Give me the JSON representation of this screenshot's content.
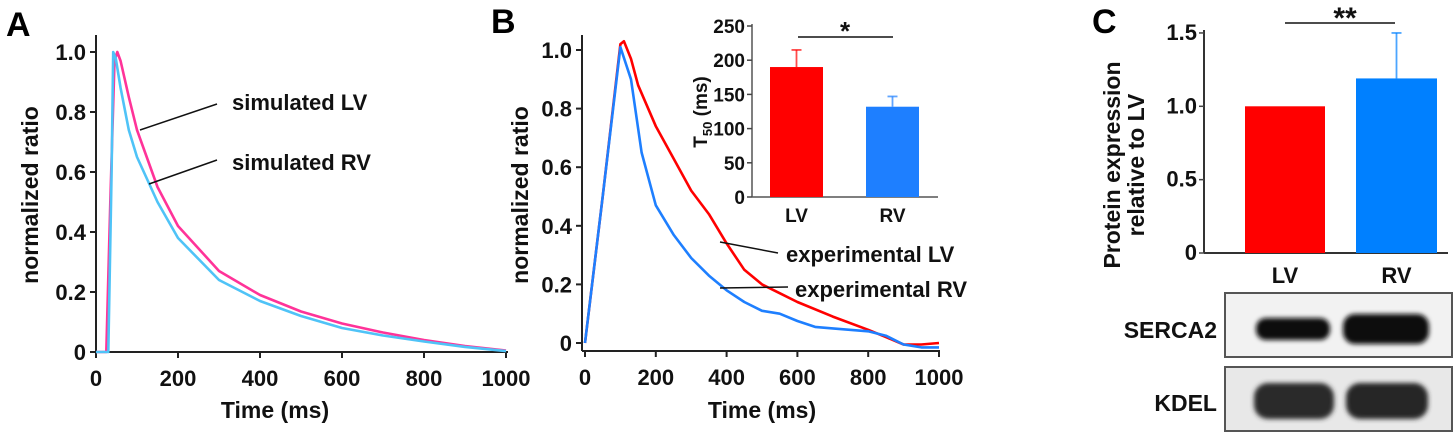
{
  "panel_letters": {
    "a": "A",
    "b": "B",
    "c": "C"
  },
  "colors": {
    "sim_lv": "#ff3399",
    "sim_rv": "#4fc3f7",
    "exp_lv": "#ff0000",
    "exp_rv": "#1e7fff",
    "bar_lv": "#ff0000",
    "bar_rv": "#0080ff"
  },
  "chart_data": [
    {
      "id": "A",
      "type": "line",
      "xlabel": "Time (ms)",
      "ylabel": "normalized ratio",
      "xlim": [
        0,
        1000
      ],
      "ylim": [
        0,
        1.0
      ],
      "xticks": [
        "0",
        "200",
        "400",
        "600",
        "800",
        "1000"
      ],
      "yticks": [
        "0",
        "0.2",
        "0.4",
        "0.6",
        "0.8",
        "1.0"
      ],
      "series": [
        {
          "name": "simulated LV",
          "x": [
            0,
            25,
            35,
            45,
            52,
            60,
            80,
            100,
            150,
            200,
            300,
            400,
            500,
            600,
            700,
            800,
            900,
            1000
          ],
          "y": [
            0,
            0,
            0.5,
            0.97,
            1.0,
            0.97,
            0.85,
            0.74,
            0.55,
            0.42,
            0.27,
            0.19,
            0.135,
            0.095,
            0.065,
            0.04,
            0.02,
            0.005
          ]
        },
        {
          "name": "simulated RV",
          "x": [
            0,
            30,
            38,
            42,
            48,
            60,
            80,
            100,
            150,
            200,
            300,
            400,
            500,
            600,
            700,
            800,
            900,
            1000
          ],
          "y": [
            0,
            0,
            0.6,
            1.0,
            0.98,
            0.88,
            0.74,
            0.65,
            0.5,
            0.38,
            0.24,
            0.17,
            0.12,
            0.08,
            0.055,
            0.035,
            0.017,
            0.003
          ]
        }
      ]
    },
    {
      "id": "B",
      "type": "line",
      "xlabel": "Time (ms)",
      "ylabel": "normalized ratio",
      "xlim": [
        0,
        1000
      ],
      "ylim": [
        0,
        1.0
      ],
      "xticks": [
        "0",
        "200",
        "400",
        "600",
        "800",
        "1000"
      ],
      "yticks": [
        "0",
        "0.2",
        "0.4",
        "0.6",
        "0.8",
        "1.0"
      ],
      "series": [
        {
          "name": "experimental LV",
          "x": [
            0,
            50,
            100,
            110,
            130,
            150,
            200,
            250,
            300,
            350,
            400,
            450,
            500,
            550,
            600,
            700,
            800,
            850,
            900,
            950,
            1000
          ],
          "y": [
            0,
            0.5,
            1.02,
            1.03,
            0.97,
            0.88,
            0.74,
            0.63,
            0.52,
            0.44,
            0.34,
            0.25,
            0.2,
            0.17,
            0.14,
            0.09,
            0.045,
            0.02,
            -0.005,
            -0.005,
            0
          ]
        },
        {
          "name": "experimental RV",
          "x": [
            0,
            50,
            100,
            130,
            160,
            200,
            250,
            300,
            350,
            400,
            450,
            500,
            550,
            600,
            650,
            700,
            800,
            850,
            900,
            950,
            1000
          ],
          "y": [
            0,
            0.5,
            1.01,
            0.9,
            0.65,
            0.47,
            0.37,
            0.29,
            0.23,
            0.18,
            0.14,
            0.11,
            0.1,
            0.075,
            0.055,
            0.05,
            0.04,
            0.025,
            -0.005,
            -0.015,
            -0.015
          ]
        }
      ]
    },
    {
      "id": "B-inset",
      "type": "bar",
      "ylabel_main": "T",
      "ylabel_sub": "50",
      "ylabel_unit": " (ms)",
      "categories": [
        "LV",
        "RV"
      ],
      "values": [
        190,
        132
      ],
      "errors": [
        25,
        15
      ],
      "ylim": [
        0,
        250
      ],
      "yticks": [
        "0",
        "50",
        "100",
        "150",
        "200",
        "250"
      ],
      "significance": "*"
    },
    {
      "id": "C",
      "type": "bar",
      "ylabel_line1": "Protein expression",
      "ylabel_line2": "relative to LV",
      "categories": [
        "LV",
        "RV"
      ],
      "values": [
        1.0,
        1.19
      ],
      "errors": [
        0,
        0.31
      ],
      "ylim": [
        0,
        1.5
      ],
      "yticks": [
        "0",
        "0.5",
        "1.0",
        "1.5"
      ],
      "significance": "**",
      "blot_labels": [
        "SERCA2",
        "KDEL"
      ]
    }
  ]
}
